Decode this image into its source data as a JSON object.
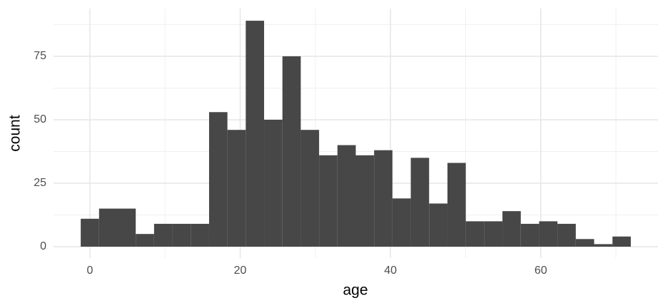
{
  "chart_data": {
    "type": "histogram",
    "x_label": "age",
    "y_label": "count",
    "bins": [
      -1.22,
      1.22,
      3.66,
      6.1,
      8.54,
      10.98,
      13.42,
      15.86,
      18.3,
      20.74,
      23.18,
      25.62,
      28.06,
      30.5,
      32.94,
      35.38,
      37.82,
      40.26,
      42.7,
      45.14,
      47.58,
      50.02,
      52.46,
      54.9,
      57.34,
      59.78,
      62.22,
      64.66,
      67.1,
      69.54,
      71.98
    ],
    "values": [
      11,
      15,
      15,
      5,
      9,
      9,
      9,
      53,
      46,
      89,
      50,
      75,
      46,
      36,
      40,
      36,
      38,
      19,
      35,
      17,
      33,
      10,
      10,
      14,
      9,
      10,
      9,
      3,
      1,
      4
    ],
    "color": "#474747",
    "xlim": [
      -4.84,
      75.6
    ],
    "xticks": [
      0,
      20,
      40,
      60
    ],
    "ylim": [
      -4.5,
      93.8
    ],
    "yticks": [
      0,
      25,
      50,
      75
    ],
    "grid": true
  }
}
